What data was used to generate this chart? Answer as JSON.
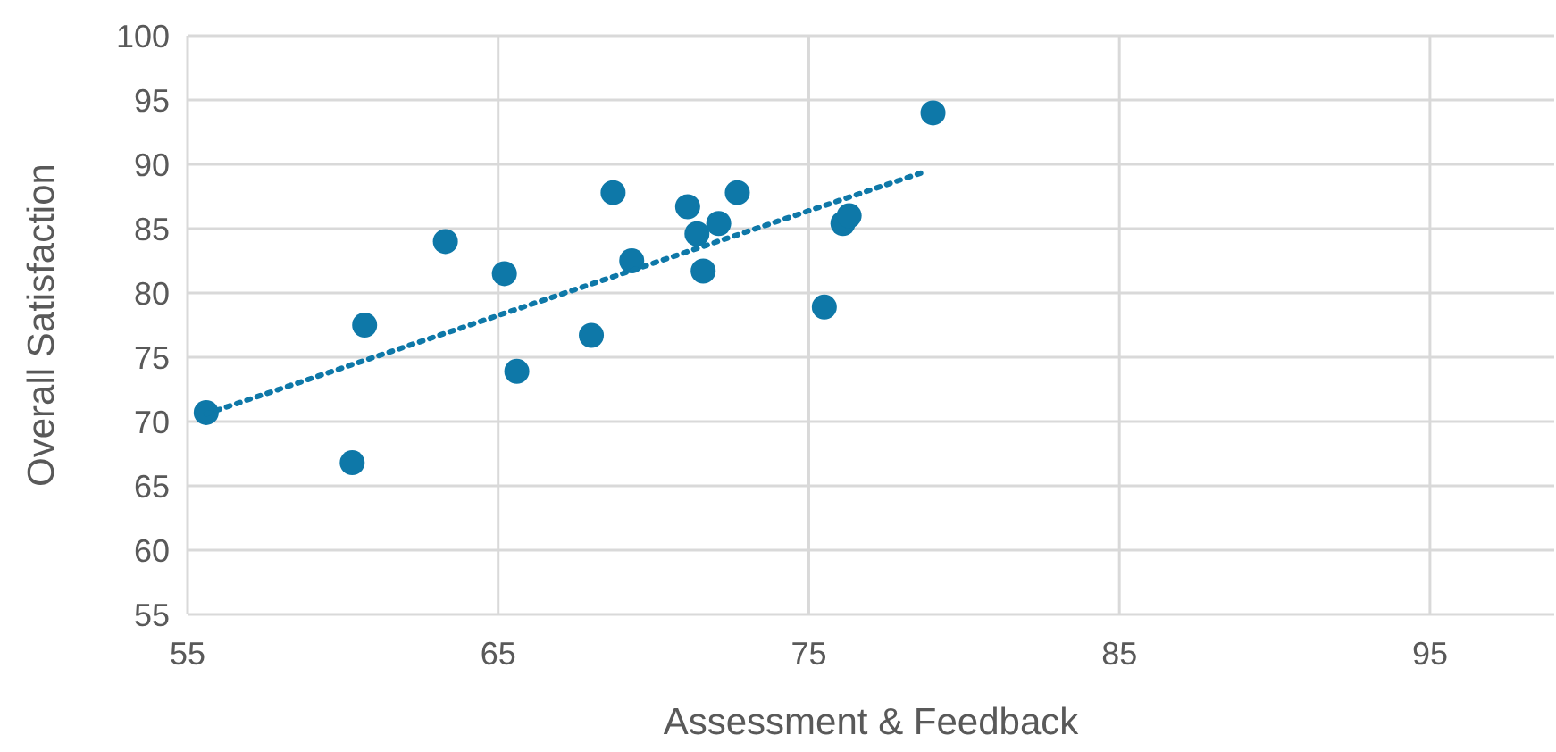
{
  "chart_data": {
    "type": "scatter",
    "xlabel": "Assessment & Feedback",
    "ylabel": "Overall Satisfaction",
    "xlim": [
      55,
      99
    ],
    "xticks": [
      55,
      65,
      75,
      85,
      95
    ],
    "ylim": [
      55,
      100
    ],
    "yticks": [
      55,
      60,
      65,
      70,
      75,
      80,
      85,
      90,
      95,
      100
    ],
    "grid": true,
    "marker": "circle",
    "series": [
      {
        "color": "#0e78a8",
        "x": [
          55.6,
          60.3,
          60.7,
          63.3,
          65.2,
          65.6,
          68.0,
          68.7,
          69.3,
          71.1,
          71.4,
          71.6,
          72.1,
          72.7,
          75.5,
          76.1,
          76.3,
          79.0
        ],
        "values": [
          70.7,
          66.8,
          77.5,
          84.0,
          81.5,
          73.9,
          76.7,
          87.8,
          82.5,
          86.7,
          84.6,
          81.7,
          85.4,
          87.8,
          78.9,
          85.4,
          86.0,
          94.0
        ]
      },
      {
        "type": "line",
        "color": "#0e78a8",
        "line_style": "dotted",
        "marker": "none",
        "x": [
          55.6,
          78.7
        ],
        "values": [
          70.6,
          89.4
        ]
      }
    ]
  }
}
